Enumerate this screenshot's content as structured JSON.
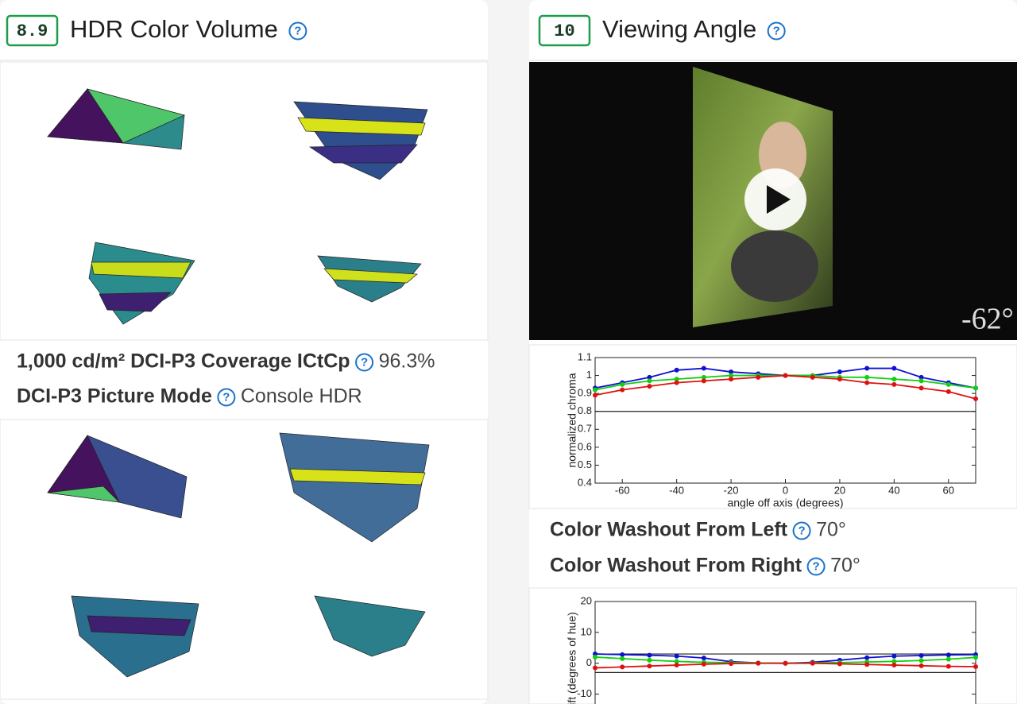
{
  "left": {
    "score": "8.9",
    "title": "HDR Color Volume",
    "metrics": [
      {
        "label": "1,000 cd/m² DCI-P3 Coverage ICtCp",
        "value": "96.3%"
      },
      {
        "label": "DCI-P3 Picture Mode",
        "value": "Console HDR"
      }
    ]
  },
  "right": {
    "score": "10",
    "title": "Viewing Angle",
    "video_overlay": "-62°",
    "metrics": [
      {
        "label": "Color Washout From Left",
        "value": "70°"
      },
      {
        "label": "Color Washout From Right",
        "value": "70°"
      }
    ],
    "charts": [
      {
        "type": "line",
        "xlabel": "angle off axis (degrees)",
        "ylabel": "normalized chroma",
        "x": [
          -70,
          -60,
          -50,
          -40,
          -30,
          -20,
          -10,
          0,
          10,
          20,
          30,
          40,
          50,
          60,
          70
        ],
        "series": [
          {
            "color": "#1010d0",
            "values": [
              0.93,
              0.96,
              0.99,
              1.03,
              1.04,
              1.02,
              1.01,
              1.0,
              1.0,
              1.02,
              1.04,
              1.04,
              0.99,
              0.96,
              0.93
            ]
          },
          {
            "color": "#10d010",
            "values": [
              0.92,
              0.95,
              0.97,
              0.98,
              0.99,
              1.0,
              1.0,
              1.0,
              1.0,
              0.99,
              0.99,
              0.98,
              0.97,
              0.95,
              0.93
            ]
          },
          {
            "color": "#e01010",
            "values": [
              0.89,
              0.92,
              0.94,
              0.96,
              0.97,
              0.98,
              0.99,
              1.0,
              0.99,
              0.98,
              0.96,
              0.95,
              0.93,
              0.91,
              0.87
            ]
          }
        ],
        "xlim": [
          -70,
          70
        ],
        "ylim": [
          0.4,
          1.1
        ],
        "xticks": [
          -60,
          -40,
          -20,
          0,
          20,
          40,
          60
        ],
        "yticks": [
          0.4,
          0.5,
          0.6,
          0.7,
          0.8,
          0.9,
          1,
          1.1
        ],
        "reference_lines": [
          0.8
        ]
      },
      {
        "type": "line",
        "ylabel": "hue shift (degrees of hue)",
        "x": [
          -70,
          -60,
          -50,
          -40,
          -30,
          -20,
          -10,
          0,
          10,
          20,
          30,
          40,
          50,
          60,
          70
        ],
        "series": [
          {
            "color": "#1010d0",
            "values": [
              3,
              2.8,
              2.6,
              2.3,
              1.7,
              0.5,
              0.1,
              0,
              0.3,
              1,
              1.8,
              2.3,
              2.5,
              2.7,
              2.8
            ]
          },
          {
            "color": "#10d010",
            "values": [
              2,
              1.5,
              1,
              0.6,
              0.3,
              0.2,
              0.1,
              0,
              0.1,
              0.2,
              0.4,
              0.6,
              0.9,
              1.3,
              1.9
            ]
          },
          {
            "color": "#e01010",
            "values": [
              -1.5,
              -1.2,
              -0.9,
              -0.6,
              -0.3,
              -0.1,
              0,
              0,
              0,
              -0.2,
              -0.4,
              -0.6,
              -0.8,
              -1,
              -1.1
            ]
          }
        ],
        "xlim": [
          -70,
          70
        ],
        "ylim": [
          -15,
          20
        ],
        "yticks": [
          -10,
          0,
          10,
          20
        ],
        "reference_lines": [
          3,
          -3
        ]
      }
    ]
  }
}
